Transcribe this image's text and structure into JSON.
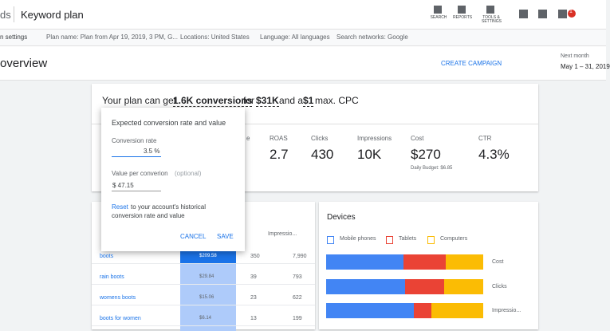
{
  "header": {
    "product": "ds",
    "title": "Keyword plan",
    "icons": [
      "SEARCH",
      "REPORTS",
      "TOOLS & SETTINGS"
    ],
    "badge": "1"
  },
  "settings_bar": {
    "settings": "n settings",
    "plan_name": "Plan name: Plan from Apr 19, 2019, 3 PM, G...",
    "locations": "Locations: United States",
    "language": "Language: All languages",
    "networks": "Search networks: Google"
  },
  "toolbar": {
    "title": "overview",
    "action": "CREATE CAMPAIGN",
    "range_label": "Next month",
    "range": "May 1 – 31, 2019"
  },
  "summary": {
    "prefix": "Your plan can get",
    "conversions": "1.6K conversions",
    "for": "for",
    "value": "$31K",
    "and": "and a",
    "cpc": "$1",
    "suffix": "max. CPC"
  },
  "metrics": [
    {
      "label": "e"
    },
    {
      "label": "ROAS",
      "value": "2.7"
    },
    {
      "label": "Clicks",
      "value": "430"
    },
    {
      "label": "Impressions",
      "value": "10K"
    },
    {
      "label": "Cost",
      "value": "$270",
      "note": "Daily Budget: $6.85"
    },
    {
      "label": "CTR",
      "value": "4.3%"
    }
  ],
  "popup": {
    "title": "Expected conversion rate and value",
    "rate_label": "Conversion rate",
    "rate": "3.5 %",
    "value_label": "Value per converion",
    "value_optional": "(optional)",
    "value": "$ 47.15",
    "reset": "Reset",
    "reset_text": "to your account's historical",
    "reset_text2": "conversion rate and value",
    "cancel": "CANCEL",
    "save": "SAVE"
  },
  "keywords": {
    "header": "Impressio...",
    "rows": [
      [
        "boots",
        "$209.58",
        "350",
        "7,990"
      ],
      [
        "rain boots",
        "$29.84",
        "39",
        "793"
      ],
      [
        "womens boots",
        "$15.06",
        "23",
        "622"
      ],
      [
        "boots for women",
        "$6.14",
        "13",
        "199"
      ]
    ]
  },
  "devices": {
    "title": "Devices",
    "legend": [
      "Mobile phones",
      "Tablets",
      "Computers"
    ],
    "colors": [
      "#4285f4",
      "#ea4335",
      "#fbbc04"
    ],
    "rows": [
      {
        "label": "Cost",
        "shares": [
          49,
          27,
          24
        ]
      },
      {
        "label": "Clicks",
        "shares": [
          50,
          25,
          25
        ]
      },
      {
        "label": "Impressio...",
        "shares": [
          56,
          11,
          33
        ]
      }
    ]
  }
}
